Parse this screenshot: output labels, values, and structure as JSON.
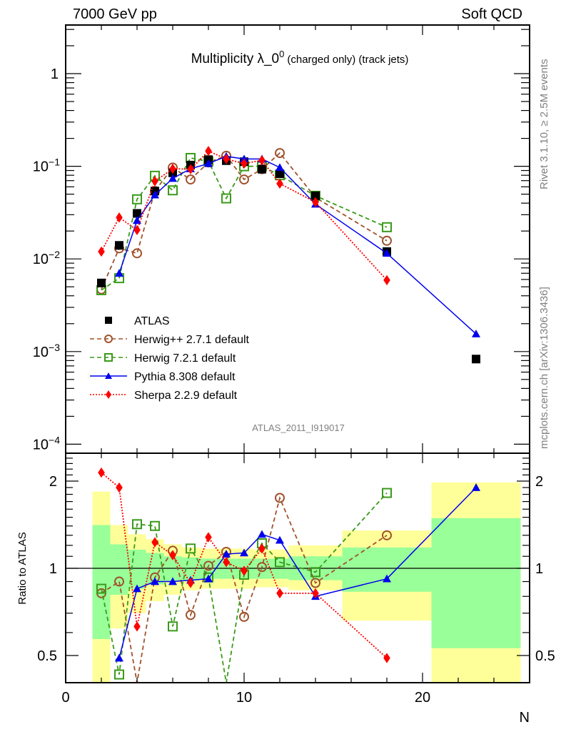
{
  "chart_data": {
    "type": "scatter",
    "header_left": "7000 GeV pp",
    "header_right": "Soft QCD",
    "title": "Multiplicity λ_0",
    "title_sup": "0",
    "title_suffix": "(charged only) (track jets)",
    "analysis_id": "ATLAS_2011_I919017",
    "side_text_top": "Rivet 3.1.10, ≥ 2.5M events",
    "side_text_bottom": "mcplots.cern.ch [arXiv:1306.3436]",
    "xlabel": "N",
    "ylabel_ratio": "Ratio to ATLAS",
    "xlim": [
      0,
      26
    ],
    "ylim": [
      0.0001,
      3
    ],
    "yscale": "log",
    "ratio_ylim": [
      0.4,
      2.5
    ],
    "ratio_yscale": "log",
    "x_ticks": [
      "0",
      "10",
      "20"
    ],
    "y_ticks": [
      {
        "value": 1,
        "label": "1"
      },
      {
        "value": 0.1,
        "label": "10",
        "exp": "−1"
      },
      {
        "value": 0.01,
        "label": "10",
        "exp": "−2"
      },
      {
        "value": 0.001,
        "label": "10",
        "exp": "−3"
      },
      {
        "value": 0.0001,
        "label": "10",
        "exp": "−4"
      }
    ],
    "ratio_ticks": [
      {
        "value": 2,
        "label": "2"
      },
      {
        "value": 1,
        "label": "1"
      },
      {
        "value": 0.5,
        "label": "0.5"
      }
    ],
    "legend_position": "lower-left",
    "x": [
      2,
      3,
      4,
      5,
      6,
      7,
      8,
      9,
      10,
      11,
      12,
      14,
      18,
      23
    ],
    "bins": [
      [
        1.5,
        2.5
      ],
      [
        2.5,
        3.5
      ],
      [
        3.5,
        4.5
      ],
      [
        4.5,
        5.5
      ],
      [
        5.5,
        6.5
      ],
      [
        6.5,
        7.5
      ],
      [
        7.5,
        8.5
      ],
      [
        8.5,
        9.5
      ],
      [
        9.5,
        10.5
      ],
      [
        10.5,
        11.5
      ],
      [
        11.5,
        12.5
      ],
      [
        12.5,
        15.5
      ],
      [
        15.5,
        20.5
      ],
      [
        20.5,
        25.5
      ]
    ],
    "ratio_bands": {
      "stat_green": [
        [
          0.57,
          1.41
        ],
        [
          0.81,
          1.21
        ],
        [
          0.85,
          1.16
        ],
        [
          0.88,
          1.13
        ],
        [
          0.9,
          1.1
        ],
        [
          0.91,
          1.09
        ],
        [
          0.92,
          1.08
        ],
        [
          0.92,
          1.08
        ],
        [
          0.92,
          1.08
        ],
        [
          0.92,
          1.08
        ],
        [
          0.92,
          1.08
        ],
        [
          0.91,
          1.1
        ],
        [
          0.83,
          1.18
        ],
        [
          0.53,
          1.49
        ]
      ],
      "total_yellow": [
        [
          0.4,
          1.84
        ],
        [
          0.62,
          1.41
        ],
        [
          0.7,
          1.31
        ],
        [
          0.77,
          1.26
        ],
        [
          0.81,
          1.21
        ],
        [
          0.84,
          1.18
        ],
        [
          0.85,
          1.17
        ],
        [
          0.85,
          1.17
        ],
        [
          0.85,
          1.17
        ],
        [
          0.86,
          1.16
        ],
        [
          0.86,
          1.16
        ],
        [
          0.84,
          1.2
        ],
        [
          0.66,
          1.35
        ],
        [
          0.4,
          1.98
        ]
      ],
      "green_color": "#99ff99",
      "yellow_color": "#ffff99"
    },
    "series": [
      {
        "name": "ATLAS",
        "color": "#000000",
        "marker": "square-filled",
        "line": "none",
        "values": [
          0.0055,
          0.014,
          0.031,
          0.054,
          0.085,
          0.103,
          0.118,
          0.115,
          0.112,
          0.093,
          0.083,
          0.048,
          0.012,
          0.00083
        ],
        "ratio": [
          1,
          1,
          1,
          1,
          1,
          1,
          1,
          1,
          1,
          1,
          1,
          1,
          1,
          1
        ]
      },
      {
        "name": "Herwig++ 2.7.1 default",
        "color": "#a0522d",
        "marker": "circle-open",
        "line": "dashed",
        "values": [
          0.0047,
          0.013,
          0.0115,
          0.054,
          0.097,
          0.072,
          0.11,
          0.13,
          0.072,
          0.093,
          0.139,
          0.046,
          0.0157,
          null
        ],
        "ratio": [
          0.82,
          0.9,
          0.37,
          0.93,
          1.15,
          0.69,
          1.02,
          1.14,
          0.68,
          1.01,
          1.75,
          0.89,
          1.3,
          null
        ]
      },
      {
        "name": "Herwig 7.2.1 default",
        "color": "#3a9a1a",
        "marker": "square-open",
        "line": "dashed",
        "values": [
          0.0046,
          0.0062,
          0.044,
          0.079,
          0.055,
          0.123,
          0.113,
          0.045,
          0.1,
          0.1,
          0.08,
          0.048,
          0.022,
          null
        ],
        "ratio": [
          0.85,
          0.43,
          1.42,
          1.4,
          0.63,
          1.17,
          0.93,
          0.38,
          0.95,
          1.22,
          1.05,
          0.97,
          1.82,
          null
        ]
      },
      {
        "name": "Pythia 8.308 default",
        "color": "#0000ee",
        "marker": "triangle-filled",
        "line": "solid",
        "values": [
          null,
          0.007,
          0.026,
          0.049,
          0.074,
          0.094,
          0.107,
          0.128,
          0.12,
          0.12,
          0.097,
          0.039,
          0.0115,
          0.00155
        ],
        "ratio": [
          null,
          0.49,
          0.85,
          0.9,
          0.9,
          0.91,
          0.92,
          1.12,
          1.13,
          1.31,
          1.25,
          0.8,
          0.92,
          1.9
        ]
      },
      {
        "name": "Sherpa 2.2.9 default",
        "color": "#ff0000",
        "marker": "diamond-filled",
        "line": "dotted",
        "values": [
          0.012,
          0.028,
          0.0205,
          0.069,
          0.094,
          0.093,
          0.146,
          0.12,
          0.107,
          0.116,
          0.065,
          0.041,
          0.0059,
          null
        ],
        "ratio": [
          2.14,
          1.9,
          0.63,
          1.23,
          1.11,
          0.89,
          1.28,
          1.05,
          0.98,
          1.17,
          0.82,
          0.82,
          0.49,
          null
        ]
      }
    ]
  }
}
